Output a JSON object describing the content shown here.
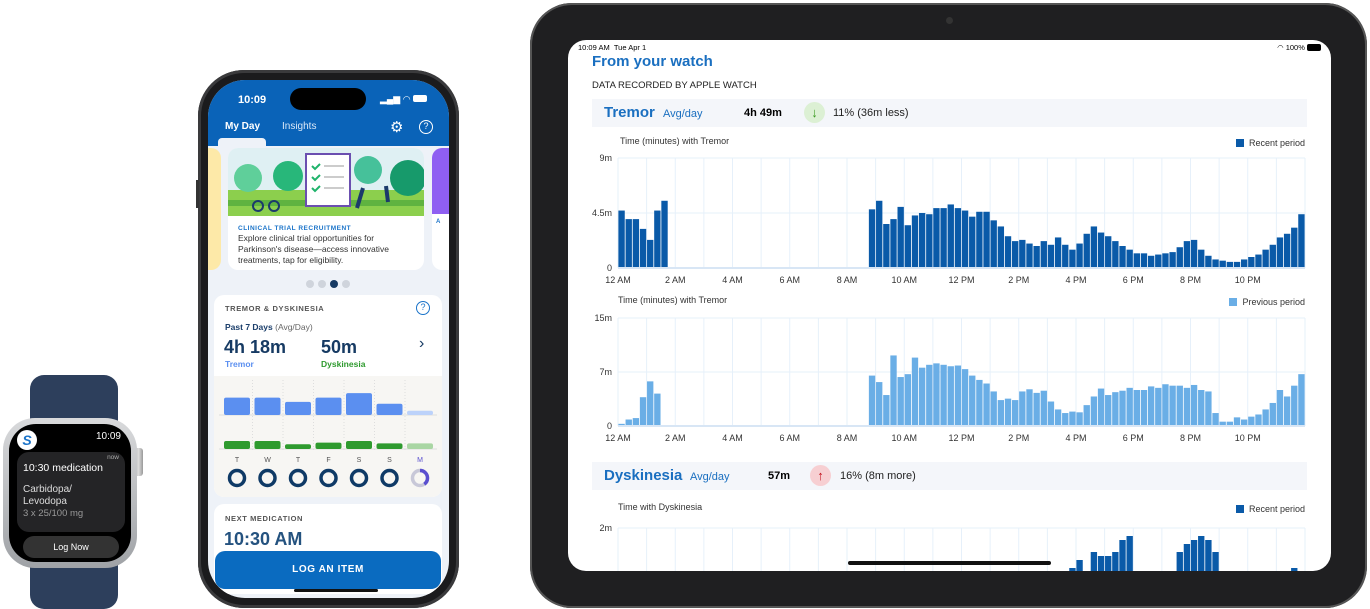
{
  "watch": {
    "time": "10:09",
    "app_icon": "s-logo-icon",
    "when": "now",
    "title": "10:30 medication",
    "drug_line1": "Carbidopa/",
    "drug_line2": "Levodopa",
    "dose": "3 x 25/100 mg",
    "log_button": "Log Now"
  },
  "phone": {
    "time": "10:09",
    "tabs": [
      {
        "label": "My Day",
        "active": true
      },
      {
        "label": "Insights",
        "active": false
      }
    ],
    "icons": [
      "gear-icon",
      "help-icon"
    ],
    "carousel": {
      "tag": "CLINICAL TRIAL RECRUITMENT",
      "text": "Explore clinical trial opportunities for Parkinson's disease—access innovative treatments, tap for eligibility.",
      "right_peek_tag": "A",
      "page_count": 4,
      "active_page": 3
    },
    "tremor_card": {
      "title": "TREMOR & DYSKINESIA",
      "period": "Past 7 Days",
      "period_note": "(Avg/Day)",
      "tremor_value": "4h 18m",
      "tremor_label": "Tremor",
      "dysk_value": "50m",
      "dysk_label": "Dyskinesia",
      "days": [
        "T",
        "W",
        "T",
        "F",
        "S",
        "S",
        "M"
      ],
      "tremor_levels": [
        0.62,
        0.62,
        0.47,
        0.62,
        0.78,
        0.4,
        0.15
      ],
      "dysk_levels": [
        0.5,
        0.5,
        0.3,
        0.4,
        0.5,
        0.35,
        0.35
      ],
      "ring_progress": [
        1,
        1,
        1,
        1,
        1,
        1,
        0.4
      ]
    },
    "next_med": {
      "title": "NEXT MEDICATION",
      "time": "10:30 AM"
    },
    "log_button": "LOG AN ITEM",
    "colors": {
      "header": "#0a63b8",
      "tremor": "#5b8ff0",
      "dysk": "#2e9a2e",
      "ring": "#0f3a66"
    }
  },
  "ipad": {
    "status_time": "10:09 AM",
    "status_date": "Tue Apr 1",
    "battery": "100%",
    "page_title": "From your watch",
    "section": "DATA RECORDED BY APPLE WATCH",
    "tremor": {
      "name": "Tremor",
      "unit": "Avg/day",
      "value": "4h 49m",
      "trend_icon": "arrow-down-icon",
      "change": "11% (36m less)"
    },
    "dyskinesia": {
      "name": "Dyskinesia",
      "unit": "Avg/day",
      "value": "57m",
      "trend_icon": "arrow-up-icon",
      "change": "16% (8m more)"
    }
  },
  "chart_data": [
    {
      "type": "bar",
      "title": "Time (minutes) with Tremor",
      "legend": "Recent period",
      "legend_position": "top-right",
      "color": "#0a5aa8",
      "ylim": [
        0,
        9
      ],
      "yticks": [
        "0",
        "4.5m",
        "9m"
      ],
      "xticks": [
        "12 AM",
        "2 AM",
        "4 AM",
        "6 AM",
        "8 AM",
        "10 AM",
        "12 PM",
        "2 PM",
        "4 PM",
        "6 PM",
        "8 PM",
        "10 PM"
      ],
      "bin_minutes": 15,
      "values": [
        4.7,
        4.0,
        4.0,
        3.2,
        2.3,
        4.7,
        5.5,
        0,
        0,
        0,
        0,
        0,
        0,
        0,
        0,
        0,
        0,
        0,
        0,
        0,
        0,
        0,
        0,
        0,
        0,
        0,
        0,
        0,
        0,
        0,
        0,
        0,
        0,
        0,
        0,
        4.8,
        5.5,
        3.6,
        4.0,
        5.0,
        3.5,
        4.3,
        4.5,
        4.4,
        4.9,
        4.9,
        5.2,
        4.9,
        4.7,
        4.2,
        4.6,
        4.6,
        3.9,
        3.4,
        2.6,
        2.2,
        2.3,
        2.0,
        1.8,
        2.2,
        1.9,
        2.5,
        1.9,
        1.5,
        2.0,
        2.8,
        3.4,
        2.9,
        2.6,
        2.2,
        1.8,
        1.5,
        1.2,
        1.2,
        1.0,
        1.1,
        1.2,
        1.3,
        1.7,
        2.2,
        2.3,
        1.5,
        1.0,
        0.7,
        0.6,
        0.5,
        0.5,
        0.7,
        0.9,
        1.1,
        1.5,
        1.9,
        2.5,
        2.8,
        3.3,
        4.4
      ]
    },
    {
      "type": "bar",
      "title": "Time (minutes) with Tremor",
      "legend": "Previous period",
      "legend_position": "top-right",
      "color": "#6aaee6",
      "ylim": [
        0,
        15
      ],
      "yticks": [
        "0",
        "7m",
        "15m"
      ],
      "xticks": [
        "12 AM",
        "2 AM",
        "4 AM",
        "6 AM",
        "8 AM",
        "10 AM",
        "12 PM",
        "2 PM",
        "4 PM",
        "6 PM",
        "8 PM",
        "10 PM"
      ],
      "bin_minutes": 15,
      "values": [
        0.3,
        0.9,
        1.1,
        4.0,
        6.2,
        4.5,
        0,
        0,
        0,
        0,
        0,
        0,
        0,
        0,
        0,
        0,
        0,
        0,
        0,
        0,
        0,
        0,
        0,
        0,
        0,
        0,
        0,
        0,
        0,
        0,
        0,
        0,
        0,
        0,
        0,
        7.0,
        6.1,
        4.3,
        9.8,
        6.8,
        7.2,
        9.5,
        8.1,
        8.5,
        8.7,
        8.5,
        8.3,
        8.4,
        7.9,
        7.0,
        6.4,
        5.9,
        4.8,
        3.6,
        3.8,
        3.6,
        4.8,
        5.1,
        4.6,
        4.9,
        3.4,
        2.3,
        1.8,
        2.0,
        1.9,
        2.9,
        4.1,
        5.2,
        4.3,
        4.7,
        4.9,
        5.3,
        5.0,
        5.0,
        5.5,
        5.3,
        5.8,
        5.6,
        5.6,
        5.3,
        5.7,
        5.0,
        4.8,
        1.8,
        0.6,
        0.6,
        1.2,
        0.9,
        1.3,
        1.6,
        2.3,
        3.2,
        5.0,
        4.1,
        5.6,
        7.2
      ]
    },
    {
      "type": "bar",
      "title": "Time with Dyskinesia",
      "legend": "Recent period",
      "legend_position": "top-right",
      "color": "#0a5aa8",
      "ylim": [
        0,
        2
      ],
      "yticks": [
        "2m"
      ],
      "bin_minutes": 15,
      "values": [
        0,
        0,
        0,
        0,
        0,
        0,
        0,
        0,
        0,
        0,
        0,
        0,
        0,
        0,
        0,
        0,
        0,
        0,
        0,
        0,
        0,
        0,
        0,
        0,
        0,
        0,
        0,
        0,
        0,
        0,
        0,
        0,
        0,
        0,
        0,
        0,
        0,
        0,
        0,
        0,
        0,
        0,
        0,
        0,
        0,
        0,
        0,
        0,
        0,
        0,
        0,
        0,
        0,
        0,
        0,
        0,
        0.3,
        0,
        0,
        0,
        0,
        0,
        0,
        1.0,
        1.2,
        0.5,
        1.4,
        1.3,
        1.3,
        1.4,
        1.7,
        1.8,
        0.7,
        0,
        0,
        0,
        0,
        0,
        1.4,
        1.6,
        1.7,
        1.8,
        1.7,
        1.4,
        0.5,
        0,
        0.3,
        0,
        0,
        0,
        0,
        0,
        0,
        0.6,
        1.0,
        0
      ]
    }
  ]
}
